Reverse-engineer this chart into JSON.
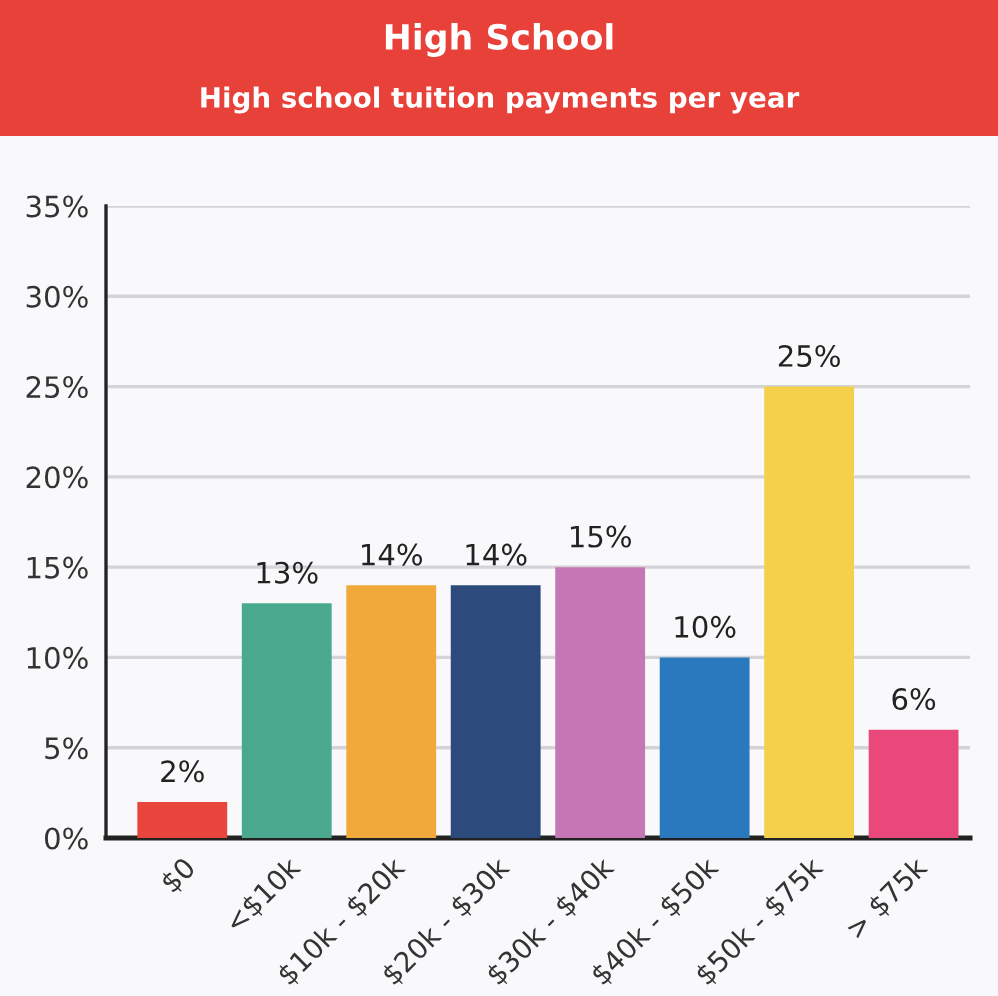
{
  "chart_data": {
    "type": "bar",
    "title": "High School",
    "subtitle": "High school tuition payments per year",
    "categories": [
      "$0",
      "<$10k",
      "$10k - $20k",
      "$20k - $30k",
      "$30k - $40k",
      "$40k - $50k",
      "$50k - $75k",
      "> $75k"
    ],
    "values": [
      2,
      13,
      14,
      14,
      15,
      10,
      25,
      6
    ],
    "value_labels": [
      "2%",
      "13%",
      "14%",
      "14%",
      "15%",
      "10%",
      "25%",
      "6%"
    ],
    "colors": [
      "#e8453c",
      "#4aa88e",
      "#f2a93b",
      "#2c4a7c",
      "#c576b4",
      "#2a78bd",
      "#f5d04a",
      "#e8497a"
    ],
    "ylim": [
      0,
      35
    ],
    "yticks": [
      {
        "value": 0,
        "label": "0%"
      },
      {
        "value": 5,
        "label": "5%"
      },
      {
        "value": 10,
        "label": "10%"
      },
      {
        "value": 15,
        "label": "15%"
      },
      {
        "value": 20,
        "label": "20%"
      },
      {
        "value": 25,
        "label": "25%"
      },
      {
        "value": 30,
        "label": "30%"
      },
      {
        "value": 35,
        "label": "35%"
      }
    ],
    "grid": "y"
  }
}
